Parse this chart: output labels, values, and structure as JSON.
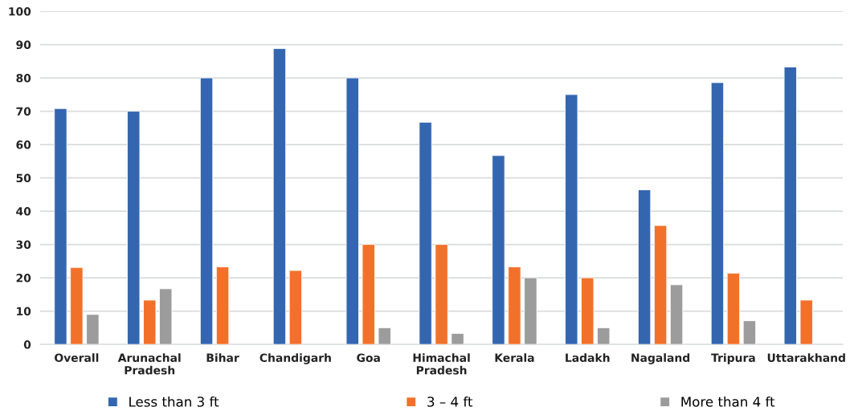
{
  "chart_data": {
    "type": "bar",
    "categories": [
      "Overall",
      "Arunachal\nPradesh",
      "Bihar",
      "Chandigarh",
      "Goa",
      "Himachal\nPradesh",
      "Kerala",
      "Ladakh",
      "Nagaland",
      "Tripura",
      "Uttarakhand"
    ],
    "series": [
      {
        "name": "Less than 3 ft",
        "color": "#3466b0",
        "values": [
          70.8,
          70,
          80,
          88.8,
          80,
          66.7,
          56.7,
          75,
          46.4,
          78.6,
          83.3
        ]
      },
      {
        "name": "3 – 4 ft",
        "color": "#f2712a",
        "values": [
          23.1,
          13.3,
          23.3,
          22.2,
          30,
          30,
          23.3,
          20,
          35.7,
          21.4,
          13.3
        ]
      },
      {
        "name": "More than 4 ft",
        "color": "#9b9c9b",
        "values": [
          9,
          16.7,
          null,
          null,
          5,
          3.3,
          20,
          5,
          17.9,
          7.1,
          null
        ]
      }
    ],
    "ylim": [
      0,
      100
    ],
    "yticks": [
      0,
      10,
      20,
      30,
      40,
      50,
      60,
      70,
      80,
      90,
      100
    ],
    "grid": "y",
    "legend": "bottom"
  }
}
